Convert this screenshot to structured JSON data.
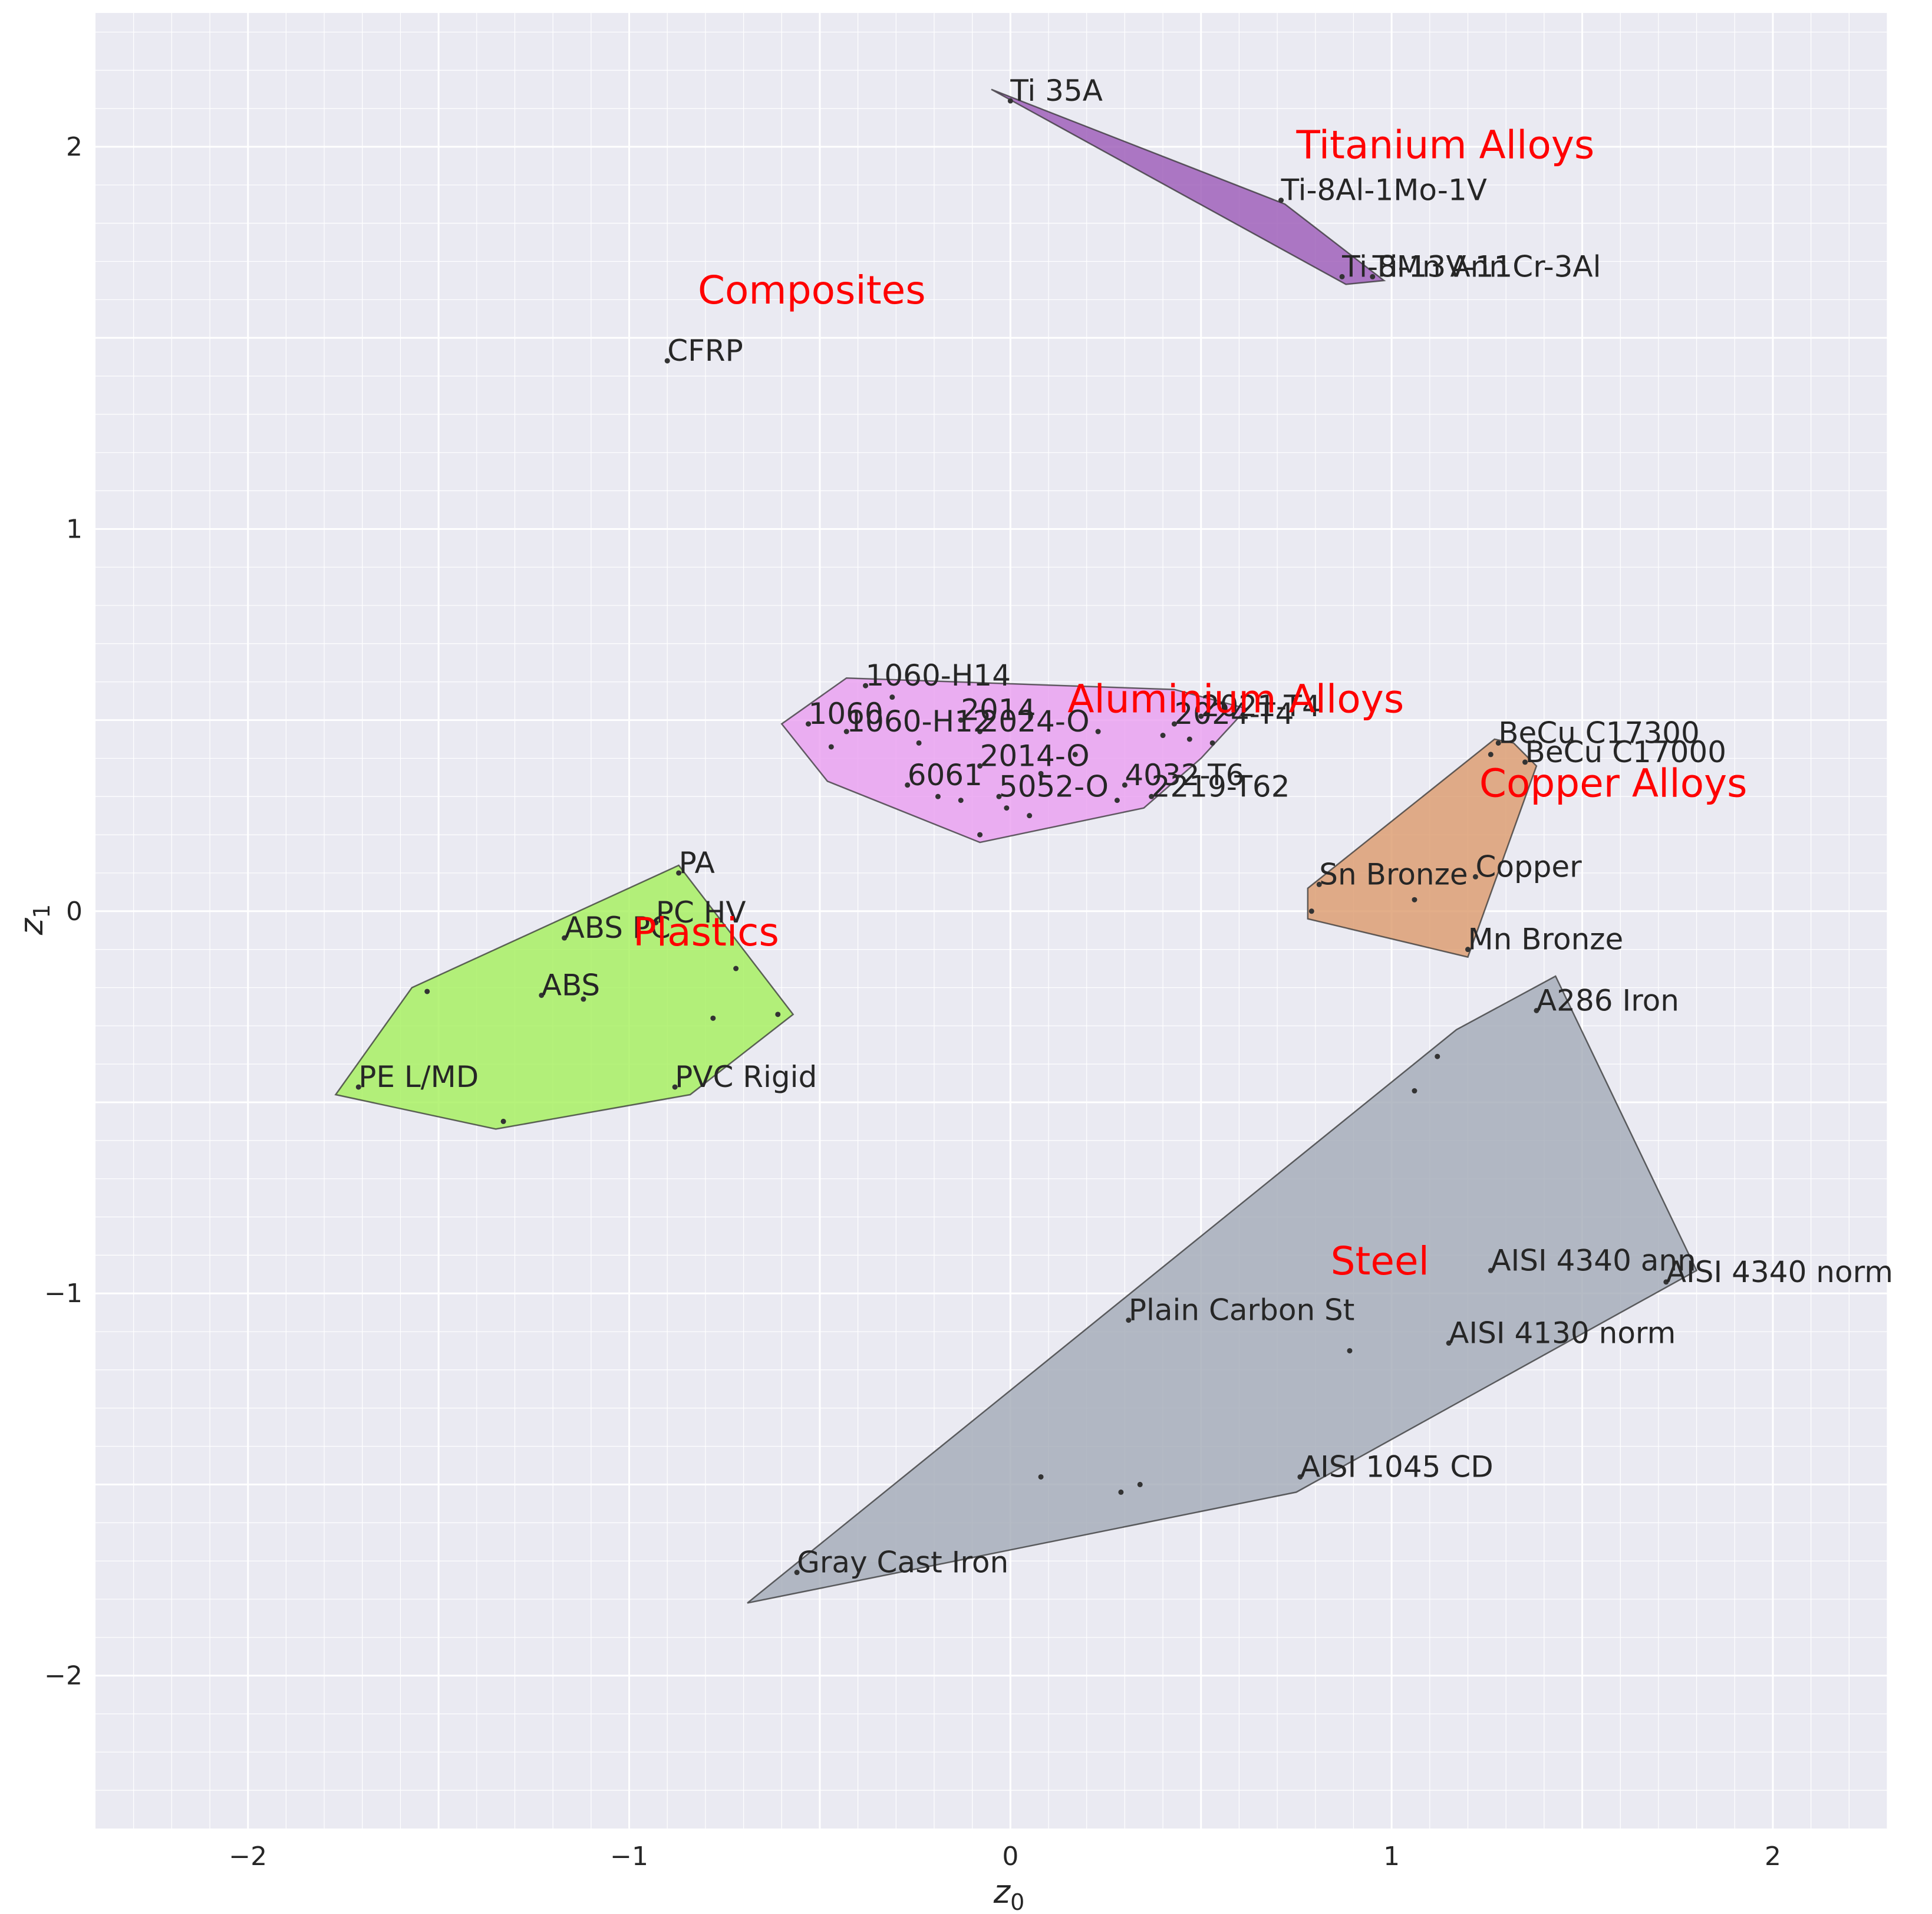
{
  "chart_data": {
    "type": "scatter",
    "title": "",
    "xlabel": "z",
    "xlabel_sub": "0",
    "ylabel": "z",
    "ylabel_sub": "1",
    "xlim": [
      -2.4,
      2.3
    ],
    "ylim": [
      -2.4,
      2.35
    ],
    "xticks": [
      -2,
      -1,
      0,
      1,
      2
    ],
    "yticks": [
      -2,
      -1,
      0,
      1,
      2
    ],
    "grid": true,
    "background": "#eaeaf2",
    "groups": [
      {
        "name": "Titanium Alloys",
        "color": "#9b59b6",
        "label_pos": [
          0.75,
          1.97
        ],
        "hull": [
          [
            -0.05,
            2.15
          ],
          [
            0.72,
            1.85
          ],
          [
            0.98,
            1.65
          ],
          [
            0.88,
            1.64
          ]
        ],
        "points": [
          {
            "x": 0.0,
            "y": 2.12,
            "label": "Ti 35A"
          },
          {
            "x": 0.71,
            "y": 1.86,
            "label": "Ti-8Al-1Mo-1V"
          },
          {
            "x": 0.87,
            "y": 1.66,
            "label": "Ti-8Mn Ann"
          },
          {
            "x": 0.95,
            "y": 1.66,
            "label": "Ti-13V-11Cr-3Al"
          }
        ]
      },
      {
        "name": "Composites",
        "color": "#333333",
        "label_pos": [
          -0.82,
          1.59
        ],
        "hull": [],
        "points": [
          {
            "x": -0.9,
            "y": 1.44,
            "label": "CFRP"
          }
        ]
      },
      {
        "name": "Aluminium Alloys",
        "color": "#ea9ef0",
        "label_pos": [
          0.15,
          0.52
        ],
        "hull": [
          [
            -0.6,
            0.49
          ],
          [
            -0.43,
            0.61
          ],
          [
            0.43,
            0.58
          ],
          [
            0.62,
            0.53
          ],
          [
            0.5,
            0.4
          ],
          [
            0.35,
            0.27
          ],
          [
            -0.08,
            0.18
          ],
          [
            -0.48,
            0.34
          ]
        ],
        "points": [
          {
            "x": -0.38,
            "y": 0.59,
            "label": "1060-H14"
          },
          {
            "x": -0.53,
            "y": 0.49,
            "label": "1060"
          },
          {
            "x": -0.43,
            "y": 0.47,
            "label": "1060-H12"
          },
          {
            "x": -0.13,
            "y": 0.5,
            "label": "2014"
          },
          {
            "x": -0.08,
            "y": 0.47,
            "label": "2024-O"
          },
          {
            "x": 0.43,
            "y": 0.49,
            "label": "2024-T4"
          },
          {
            "x": 0.5,
            "y": 0.51,
            "label": "2021-T4"
          },
          {
            "x": -0.08,
            "y": 0.38,
            "label": "2014-O"
          },
          {
            "x": -0.27,
            "y": 0.33,
            "label": "6061"
          },
          {
            "x": -0.03,
            "y": 0.3,
            "label": "5052-O"
          },
          {
            "x": 0.3,
            "y": 0.33,
            "label": "4032-T6"
          },
          {
            "x": 0.37,
            "y": 0.3,
            "label": "2219-T62"
          },
          {
            "x": -0.47,
            "y": 0.43,
            "label": ""
          },
          {
            "x": -0.31,
            "y": 0.56,
            "label": ""
          },
          {
            "x": -0.24,
            "y": 0.44,
            "label": ""
          },
          {
            "x": -0.19,
            "y": 0.3,
            "label": ""
          },
          {
            "x": -0.13,
            "y": 0.29,
            "label": ""
          },
          {
            "x": -0.01,
            "y": 0.27,
            "label": ""
          },
          {
            "x": 0.05,
            "y": 0.25,
            "label": ""
          },
          {
            "x": 0.08,
            "y": 0.36,
            "label": ""
          },
          {
            "x": 0.17,
            "y": 0.41,
            "label": ""
          },
          {
            "x": 0.23,
            "y": 0.47,
            "label": ""
          },
          {
            "x": 0.28,
            "y": 0.29,
            "label": ""
          },
          {
            "x": 0.4,
            "y": 0.46,
            "label": ""
          },
          {
            "x": 0.47,
            "y": 0.45,
            "label": ""
          },
          {
            "x": 0.53,
            "y": 0.44,
            "label": ""
          },
          {
            "x": -0.08,
            "y": 0.2,
            "label": ""
          }
        ]
      },
      {
        "name": "Copper Alloys",
        "color": "#dc9a6c",
        "label_pos": [
          1.23,
          0.3
        ],
        "hull": [
          [
            0.78,
            0.06
          ],
          [
            1.27,
            0.45
          ],
          [
            1.32,
            0.44
          ],
          [
            1.38,
            0.38
          ],
          [
            1.2,
            -0.12
          ],
          [
            0.78,
            -0.02
          ]
        ],
        "points": [
          {
            "x": 1.28,
            "y": 0.44,
            "label": "BeCu C17300"
          },
          {
            "x": 1.35,
            "y": 0.39,
            "label": "BeCu C17000"
          },
          {
            "x": 0.81,
            "y": 0.07,
            "label": "Sn Bronze"
          },
          {
            "x": 1.22,
            "y": 0.09,
            "label": "Copper"
          },
          {
            "x": 1.2,
            "y": -0.1,
            "label": "Mn Bronze"
          },
          {
            "x": 1.06,
            "y": 0.03,
            "label": ""
          },
          {
            "x": 0.79,
            "y": 0.0,
            "label": ""
          },
          {
            "x": 1.26,
            "y": 0.41,
            "label": ""
          }
        ]
      },
      {
        "name": "Plastics",
        "color": "#a4f05a",
        "label_pos": [
          -0.99,
          -0.09
        ],
        "hull": [
          [
            -1.77,
            -0.48
          ],
          [
            -1.57,
            -0.2
          ],
          [
            -0.87,
            0.12
          ],
          [
            -0.57,
            -0.27
          ],
          [
            -0.84,
            -0.48
          ],
          [
            -1.35,
            -0.57
          ]
        ],
        "points": [
          {
            "x": -0.87,
            "y": 0.1,
            "label": "PA"
          },
          {
            "x": -1.17,
            "y": -0.07,
            "label": "ABS PC"
          },
          {
            "x": -0.93,
            "y": -0.03,
            "label": "PC HV"
          },
          {
            "x": -1.23,
            "y": -0.22,
            "label": "ABS"
          },
          {
            "x": -1.71,
            "y": -0.46,
            "label": "PE L/MD"
          },
          {
            "x": -0.88,
            "y": -0.46,
            "label": "PVC Rigid"
          },
          {
            "x": -1.53,
            "y": -0.21,
            "label": ""
          },
          {
            "x": -1.33,
            "y": -0.55,
            "label": ""
          },
          {
            "x": -0.72,
            "y": -0.15,
            "label": ""
          },
          {
            "x": -0.78,
            "y": -0.28,
            "label": ""
          },
          {
            "x": -0.61,
            "y": -0.27,
            "label": ""
          },
          {
            "x": -1.12,
            "y": -0.23,
            "label": ""
          }
        ]
      },
      {
        "name": "Steel",
        "color": "#a2aab7",
        "label_pos": [
          0.84,
          -0.95
        ],
        "hull": [
          [
            -0.69,
            -1.81
          ],
          [
            0.75,
            -1.52
          ],
          [
            1.8,
            -0.94
          ],
          [
            1.43,
            -0.17
          ],
          [
            1.17,
            -0.31
          ]
        ],
        "points": [
          {
            "x": 1.38,
            "y": -0.26,
            "label": "A286 Iron"
          },
          {
            "x": 1.26,
            "y": -0.94,
            "label": "AISI 4340 ann"
          },
          {
            "x": 1.72,
            "y": -0.97,
            "label": "AISI 4340 norm"
          },
          {
            "x": 0.31,
            "y": -1.07,
            "label": "Plain Carbon St"
          },
          {
            "x": 1.15,
            "y": -1.13,
            "label": "AISI 4130 norm"
          },
          {
            "x": 0.76,
            "y": -1.48,
            "label": "AISI 1045 CD"
          },
          {
            "x": -0.56,
            "y": -1.73,
            "label": "Gray Cast Iron"
          },
          {
            "x": 1.12,
            "y": -0.38,
            "label": ""
          },
          {
            "x": 1.06,
            "y": -0.47,
            "label": ""
          },
          {
            "x": 0.89,
            "y": -1.15,
            "label": ""
          },
          {
            "x": 0.08,
            "y": -1.48,
            "label": ""
          },
          {
            "x": 0.29,
            "y": -1.52,
            "label": ""
          },
          {
            "x": 0.34,
            "y": -1.5,
            "label": ""
          }
        ]
      }
    ]
  }
}
